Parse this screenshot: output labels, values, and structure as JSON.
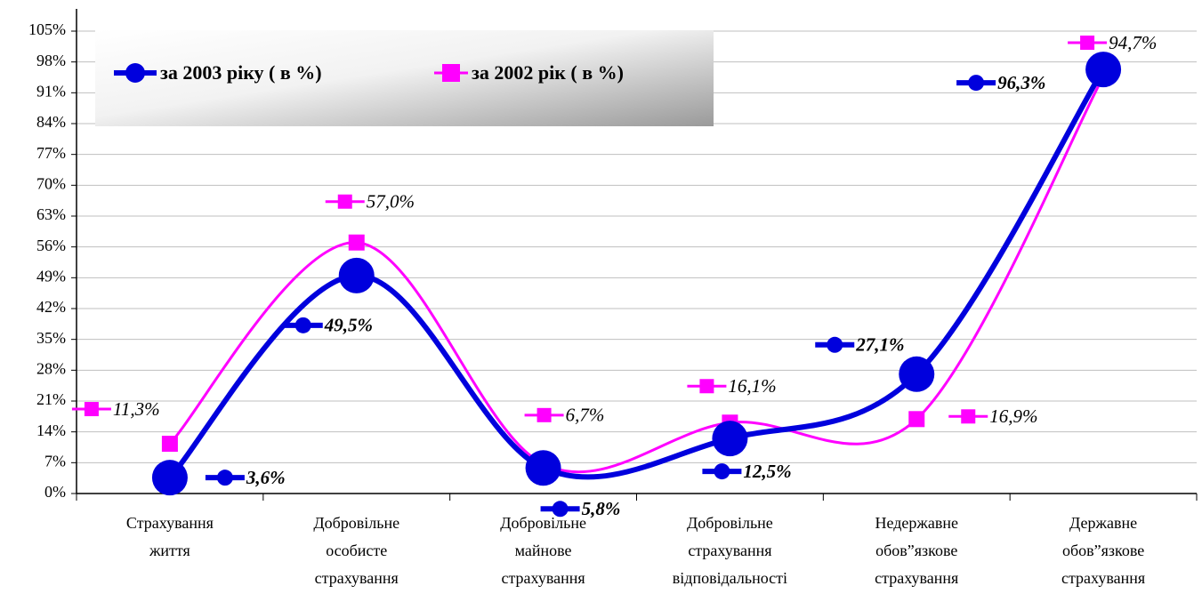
{
  "chart_data": {
    "type": "line",
    "categories": [
      "Страхування життя",
      "Добровільне особисте страхування",
      "Добровільне майнове страхування",
      "Добровільне страхування відповідальності",
      "Недержавне обов”язкове страхування",
      "Державне обов”язкове страхування"
    ],
    "series": [
      {
        "name": "за 2003 ріку  ( в %)",
        "color": "#0000dd",
        "values": [
          3.6,
          49.5,
          5.8,
          12.5,
          27.1,
          96.3
        ],
        "value_labels": [
          "3,6%",
          "49,5%",
          "5,8%",
          "12,5%",
          "27,1%",
          "96,3%"
        ]
      },
      {
        "name": "за 2002 рік  ( в %)",
        "color": "#ff00ff",
        "values": [
          11.3,
          57.0,
          6.7,
          16.1,
          16.9,
          94.7
        ],
        "value_labels": [
          "11,3%",
          "57,0%",
          "6,7%",
          "16,1%",
          "16,9%",
          "94,7%"
        ]
      }
    ],
    "ylim": [
      0,
      105
    ],
    "yticks": [
      {
        "value": 0,
        "label": "0%"
      },
      {
        "value": 7,
        "label": "7%"
      },
      {
        "value": 14,
        "label": "14%"
      },
      {
        "value": 21,
        "label": "21%"
      },
      {
        "value": 28,
        "label": "28%"
      },
      {
        "value": 35,
        "label": "35%"
      },
      {
        "value": 42,
        "label": "42%"
      },
      {
        "value": 49,
        "label": "49%"
      },
      {
        "value": 56,
        "label": "56%"
      },
      {
        "value": 63,
        "label": "63%"
      },
      {
        "value": 70,
        "label": "70%"
      },
      {
        "value": 77,
        "label": "77%"
      },
      {
        "value": 84,
        "label": "84%"
      },
      {
        "value": 91,
        "label": "91%"
      },
      {
        "value": 98,
        "label": "98%"
      },
      {
        "value": 105,
        "label": "105%"
      }
    ],
    "grid": true,
    "legend": "top-left"
  }
}
